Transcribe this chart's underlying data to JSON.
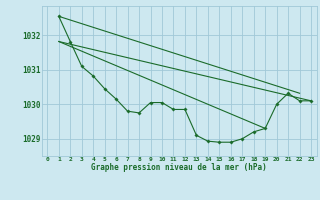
{
  "title": "Graphe pression niveau de la mer (hPa)",
  "bg_color": "#cde8f0",
  "grid_color": "#a0c8d8",
  "line_color": "#1a6b2a",
  "xlim": [
    -0.5,
    23.5
  ],
  "ylim": [
    1028.5,
    1032.85
  ],
  "yticks": [
    1029,
    1030,
    1031,
    1032
  ],
  "xticks": [
    0,
    1,
    2,
    3,
    4,
    5,
    6,
    7,
    8,
    9,
    10,
    11,
    12,
    13,
    14,
    15,
    16,
    17,
    18,
    19,
    20,
    21,
    22,
    23
  ],
  "curve1_x": [
    1,
    2,
    3,
    4,
    5,
    6,
    7,
    8,
    9,
    10,
    11,
    12,
    13,
    14,
    15,
    16,
    17,
    18,
    19,
    20,
    21,
    22,
    23
  ],
  "curve1_y": [
    1032.55,
    1031.82,
    1031.1,
    1030.82,
    1030.45,
    1030.15,
    1029.8,
    1029.75,
    1030.05,
    1030.05,
    1029.85,
    1029.85,
    1029.1,
    1028.93,
    1028.9,
    1028.9,
    1029.0,
    1029.2,
    1029.3,
    1030.0,
    1030.32,
    1030.1,
    1030.1
  ],
  "line2_x": [
    1,
    19
  ],
  "line2_y": [
    1031.82,
    1029.3
  ],
  "line3_x": [
    1,
    23
  ],
  "line3_y": [
    1031.82,
    1030.1
  ],
  "line4_x": [
    1,
    22
  ],
  "line4_y": [
    1032.55,
    1030.32
  ]
}
